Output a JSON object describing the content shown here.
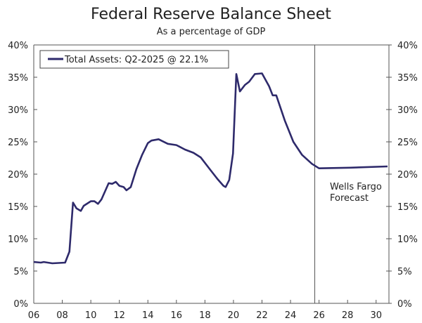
{
  "chart_data": {
    "type": "line",
    "title": "Federal Reserve Balance Sheet",
    "subtitle": "As a percentage of GDP",
    "xlabel": "",
    "ylabel": "",
    "xlim": [
      2006,
      2030.9
    ],
    "ylim": [
      0,
      40
    ],
    "x_ticks": [
      2006,
      2008,
      2010,
      2012,
      2014,
      2016,
      2018,
      2020,
      2022,
      2024,
      2026,
      2028,
      2030
    ],
    "x_tick_labels": [
      "06",
      "08",
      "10",
      "12",
      "14",
      "16",
      "18",
      "20",
      "22",
      "24",
      "26",
      "28",
      "30"
    ],
    "y_ticks": [
      0,
      5,
      10,
      15,
      20,
      25,
      30,
      35,
      40
    ],
    "y_tick_labels": [
      "0%",
      "5%",
      "10%",
      "15%",
      "20%",
      "25%",
      "30%",
      "35%",
      "40%"
    ],
    "legend": {
      "placement": "top-left",
      "entries": [
        "Total Assets: Q2-2025 @ 22.1%"
      ]
    },
    "annotation": {
      "line1": "Wells Fargo",
      "line2": "Forecast",
      "forecast_start_x": 2025.7
    },
    "grid": false,
    "series": [
      {
        "name": "Total Assets: Q2-2025 @ 22.1%",
        "color": "#2e2a6b",
        "x": [
          2006.0,
          2006.5,
          2006.7,
          2007.3,
          2008.2,
          2008.5,
          2008.75,
          2009.0,
          2009.3,
          2009.5,
          2010.0,
          2010.25,
          2010.5,
          2010.75,
          2011.25,
          2011.5,
          2011.75,
          2012.0,
          2012.3,
          2012.5,
          2012.8,
          2013.2,
          2013.6,
          2014.0,
          2014.25,
          2014.75,
          2015.4,
          2016.0,
          2016.6,
          2017.2,
          2017.7,
          2018.4,
          2018.9,
          2019.3,
          2019.45,
          2019.7,
          2019.97,
          2020.2,
          2020.45,
          2020.8,
          2021.1,
          2021.5,
          2022.0,
          2022.5,
          2022.75,
          2023.0,
          2023.6,
          2024.2,
          2024.8,
          2025.5,
          2026.0,
          2028.2,
          2030.8
        ],
        "y": [
          6.4,
          6.3,
          6.4,
          6.2,
          6.3,
          8.0,
          15.6,
          14.7,
          14.3,
          15.1,
          15.8,
          15.8,
          15.4,
          16.1,
          18.6,
          18.5,
          18.8,
          18.2,
          18.0,
          17.5,
          18.0,
          20.8,
          23.0,
          24.8,
          25.2,
          25.4,
          24.7,
          24.5,
          23.8,
          23.3,
          22.6,
          20.6,
          19.2,
          18.2,
          18.0,
          19.1,
          23.2,
          35.5,
          32.8,
          33.8,
          34.3,
          35.5,
          35.6,
          33.6,
          32.2,
          32.2,
          28.3,
          25.0,
          23.0,
          21.6,
          20.9,
          21.0,
          21.2
        ]
      }
    ]
  }
}
